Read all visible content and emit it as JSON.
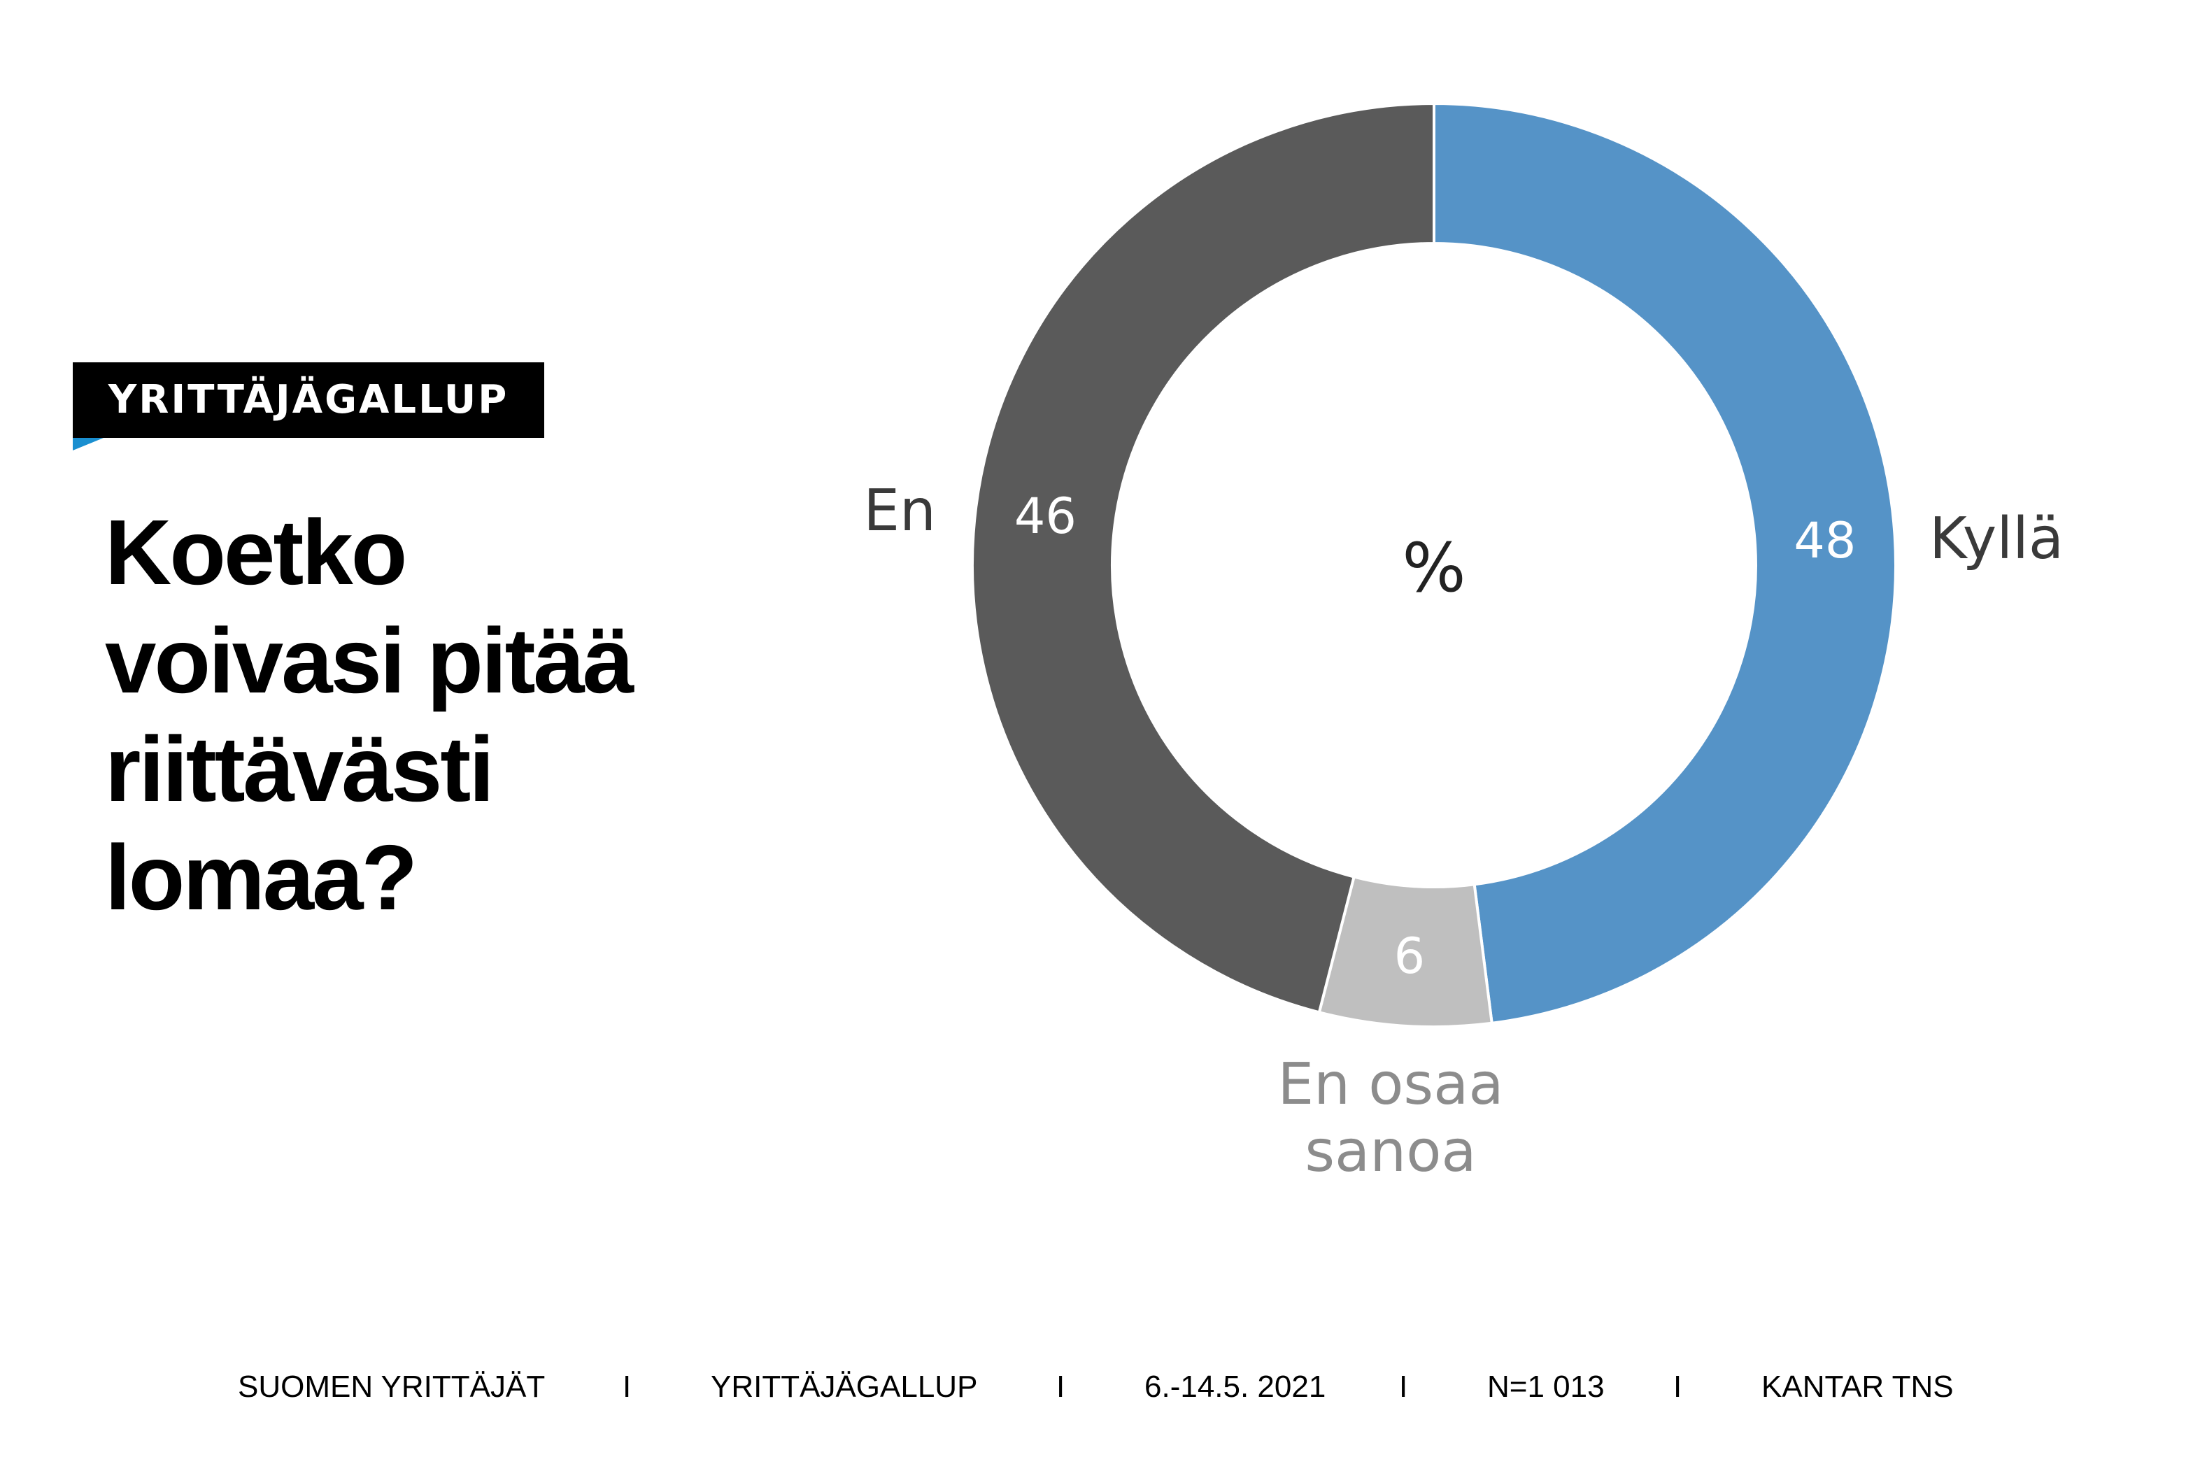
{
  "badge": "YRITTÄJÄGALLUP",
  "question_lines": [
    "Koetko",
    "voivasi pitää",
    "riittävästi",
    "lomaa?"
  ],
  "chart_data": {
    "type": "pie",
    "variant": "donut",
    "center_label": "%",
    "slices": [
      {
        "label": "Kyllä",
        "value": 48,
        "color": "#5593c7",
        "value_label_color": "#ffffff",
        "label_color": "#3a3a3a"
      },
      {
        "label": "En osaa sanoa",
        "label_lines": [
          "En osaa",
          "sanoa"
        ],
        "value": 6,
        "color": "#bfbfbf",
        "value_label_color": "#ffffff",
        "label_color": "#8c8c8c"
      },
      {
        "label": "En",
        "value": 46,
        "color": "#5a5a5a",
        "value_label_color": "#ffffff",
        "label_color": "#3a3a3a"
      }
    ]
  },
  "footer": {
    "items": [
      "SUOMEN YRITTÄJÄT",
      "I",
      "YRITTÄJÄGALLUP",
      "I",
      "6.-14.5. 2021",
      "I",
      "N=1 013",
      "I",
      "KANTAR TNS"
    ]
  }
}
